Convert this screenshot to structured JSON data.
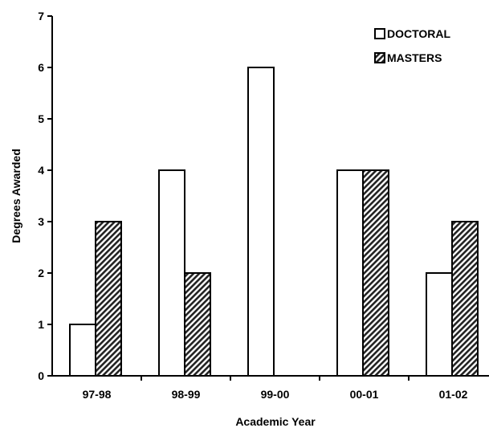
{
  "chart_data": {
    "type": "bar",
    "categories": [
      "97-98",
      "98-99",
      "99-00",
      "00-01",
      "01-02"
    ],
    "series": [
      {
        "name": "DOCTORAL",
        "values": [
          1,
          4,
          6,
          4,
          2
        ],
        "fill": "#ffffff",
        "pattern": "none"
      },
      {
        "name": "MASTERS",
        "values": [
          3,
          2,
          0,
          4,
          3
        ],
        "fill": "#808080",
        "pattern": "diagonal-hatch"
      }
    ],
    "title": "",
    "xlabel": "Academic Year",
    "ylabel": "Degrees Awarded",
    "ylim": [
      0,
      7
    ],
    "yticks": [
      0,
      1,
      2,
      3,
      4,
      5,
      6,
      7
    ],
    "grid": false,
    "legend": {
      "position": "top-right"
    }
  }
}
